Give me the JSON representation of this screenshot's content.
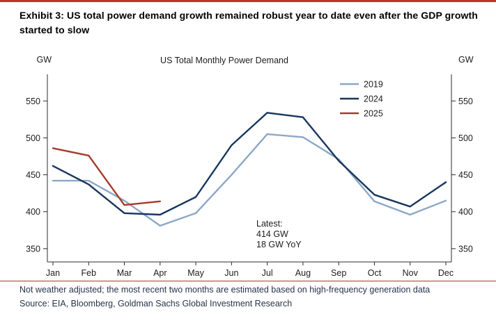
{
  "exhibit": {
    "title": "Exhibit 3: US total power demand growth remained robust year to date even after the GDP growth started to slow",
    "footnote": "Not weather adjusted; the most recent two months are estimated based on high-frequency generation data",
    "source": "Source: EIA, Bloomberg, Goldman Sachs Global Investment Research"
  },
  "colors": {
    "top_rule_red": "#BE342C",
    "divider_red": "#A23A31",
    "axis": "#2B2B2B",
    "text": "#1C1C1C",
    "footnote_text": "#26344A"
  },
  "chart_data": {
    "type": "line",
    "title": "US Total Monthly Power Demand",
    "unit_left": "GW",
    "unit_right": "GW",
    "xlabel": "",
    "ylabel": "GW",
    "categories": [
      "Jan",
      "Feb",
      "Mar",
      "Apr",
      "May",
      "Jun",
      "Jul",
      "Aug",
      "Sep",
      "Oct",
      "Nov",
      "Dec"
    ],
    "series": [
      {
        "name": "2019",
        "color": "#8BA7C7",
        "values": [
          442,
          442,
          415,
          381,
          398,
          450,
          505,
          501,
          471,
          414,
          396,
          415
        ]
      },
      {
        "name": "2024",
        "color": "#17365D",
        "values": [
          462,
          437,
          398,
          396,
          420,
          490,
          534,
          528,
          469,
          423,
          407,
          440
        ]
      },
      {
        "name": "2025",
        "color": "#A53A2B",
        "values": [
          486,
          476,
          409,
          414,
          null,
          null,
          null,
          null,
          null,
          null,
          null,
          null
        ]
      }
    ],
    "ylim": [
      332,
      586
    ],
    "yticks": [
      350,
      400,
      450,
      500,
      550
    ],
    "grid": false,
    "legend": {
      "position": "top-right",
      "entries": [
        "2019",
        "2024",
        "2025"
      ]
    },
    "annotation": {
      "lines": [
        "Latest:",
        "414 GW",
        "18 GW YoY"
      ]
    }
  }
}
